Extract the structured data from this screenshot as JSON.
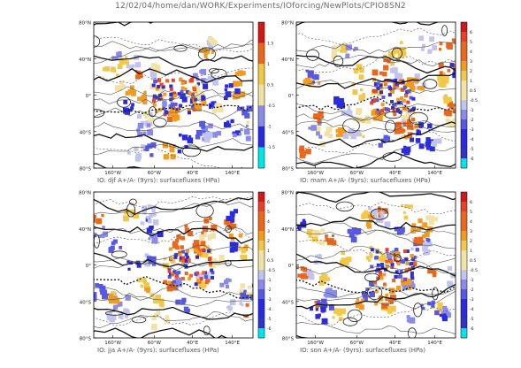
{
  "page": {
    "title": "12/02/04/home/dan/WORK/Experiments/IOforcing/NewPlots/CPIO8SN2",
    "palette": [
      "#00e5e5",
      "#2d36c9",
      "#2a2ae0",
      "#5858e6",
      "#8a8ae8",
      "#c3c3ef",
      "#f1e2a6",
      "#f2c84b",
      "#f29b1c",
      "#e9681c",
      "#e8402b",
      "#d11818"
    ]
  },
  "chart_data": [
    {
      "type": "heatmap",
      "title": "IO: djf A+/A- (9yrs): surfacefluxes (HPa)",
      "x_ticks": [
        "160°W",
        "60°W",
        "40°E",
        "140°E"
      ],
      "y_ticks": [
        "80°N",
        "40°N",
        "0°",
        "40°S",
        "80°S"
      ],
      "colorbar_ticks": [
        "1.5",
        "1",
        "0.5",
        "-0.5",
        "-1",
        "-1.5"
      ]
    },
    {
      "type": "heatmap",
      "title": "IO: mam A+/A- (9yrs): surfacefluxes (HPa)",
      "x_ticks": [
        "160°W",
        "60°W",
        "40°E",
        "140°E"
      ],
      "y_ticks": [
        "80°N",
        "40°N",
        "0°",
        "40°S",
        "80°S"
      ],
      "colorbar_ticks": [
        "6",
        "5",
        "4",
        "3",
        "2",
        "1",
        "0.5",
        "-0.5",
        "-1",
        "-2",
        "-3",
        "-4",
        "-5",
        "-6"
      ]
    },
    {
      "type": "heatmap",
      "title": "IO: jja A+/A- (9yrs): surfacefluxes (HPa)",
      "x_ticks": [
        "160°W",
        "60°W",
        "40°E",
        "140°E"
      ],
      "y_ticks": [
        "80°N",
        "40°N",
        "0°",
        "40°S",
        "80°S"
      ],
      "colorbar_ticks": [
        "6",
        "5",
        "4",
        "3",
        "2",
        "1",
        "0.5",
        "-0.5",
        "-1",
        "-2",
        "-3",
        "-4",
        "-5",
        "-6"
      ]
    },
    {
      "type": "heatmap",
      "title": "IO: son A+/A- (9yrs): surfacefluxes (HPa)",
      "x_ticks": [
        "160°W",
        "60°W",
        "40°E",
        "140°E"
      ],
      "y_ticks": [
        "80°N",
        "40°N",
        "0°",
        "40°S",
        "80°S"
      ],
      "colorbar_ticks": [
        "6",
        "5",
        "4",
        "3",
        "2",
        "1",
        "0.5",
        "-0.5",
        "-1",
        "-2",
        "-3",
        "-4",
        "-5",
        "-6"
      ]
    }
  ]
}
